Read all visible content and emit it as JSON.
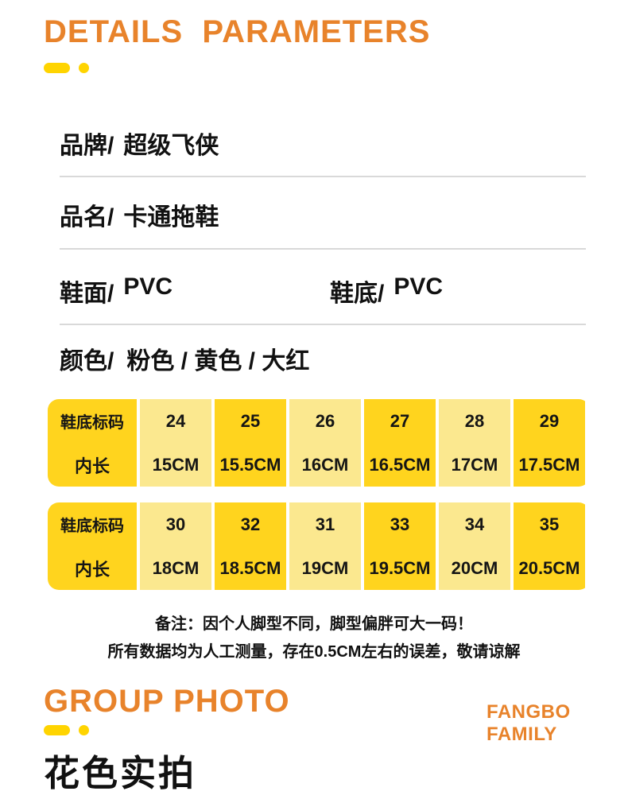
{
  "colors": {
    "accent_orange": "#E8832B",
    "accent_gold": "#FFD400",
    "table_bright_yellow": "#FFD41E",
    "table_light_yellow": "#FBE88F",
    "divider_gray": "#D9D9D9"
  },
  "details": {
    "title": "DETAILS  PARAMETERS",
    "specs": [
      {
        "label": "品牌/",
        "value": "超级飞侠"
      },
      {
        "label": "品名/",
        "value": "卡通拖鞋"
      }
    ],
    "materials": [
      {
        "label": "鞋面/",
        "value": "PVC"
      },
      {
        "label": "鞋底/",
        "value": "PVC"
      }
    ],
    "color": {
      "label": "颜色/",
      "value": "粉色 / 黄色 / 大红"
    }
  },
  "size_tables": [
    {
      "row1_label": "鞋底标码",
      "row2_label": "内长",
      "columns": [
        {
          "size": "24",
          "length": "15CM"
        },
        {
          "size": "25",
          "length": "15.5CM"
        },
        {
          "size": "26",
          "length": "16CM"
        },
        {
          "size": "27",
          "length": "16.5CM"
        },
        {
          "size": "28",
          "length": "17CM"
        },
        {
          "size": "29",
          "length": "17.5CM"
        }
      ]
    },
    {
      "row1_label": "鞋底标码",
      "row2_label": "内长",
      "columns": [
        {
          "size": "30",
          "length": "18CM"
        },
        {
          "size": "32",
          "length": "18.5CM"
        },
        {
          "size": "31",
          "length": "19CM"
        },
        {
          "size": "33",
          "length": "19.5CM"
        },
        {
          "size": "34",
          "length": "20CM"
        },
        {
          "size": "35",
          "length": "20.5CM"
        }
      ]
    }
  ],
  "note": {
    "line1": "备注：因个人脚型不同，脚型偏胖可大一码！",
    "line2": "所有数据均为人工测量，存在0.5CM左右的误差，敬请谅解"
  },
  "group_photo": {
    "title": "GROUP PHOTO",
    "brand_line1": "FANGBO",
    "brand_line2": "FAMILY",
    "subtitle_cn": "花色实拍"
  }
}
